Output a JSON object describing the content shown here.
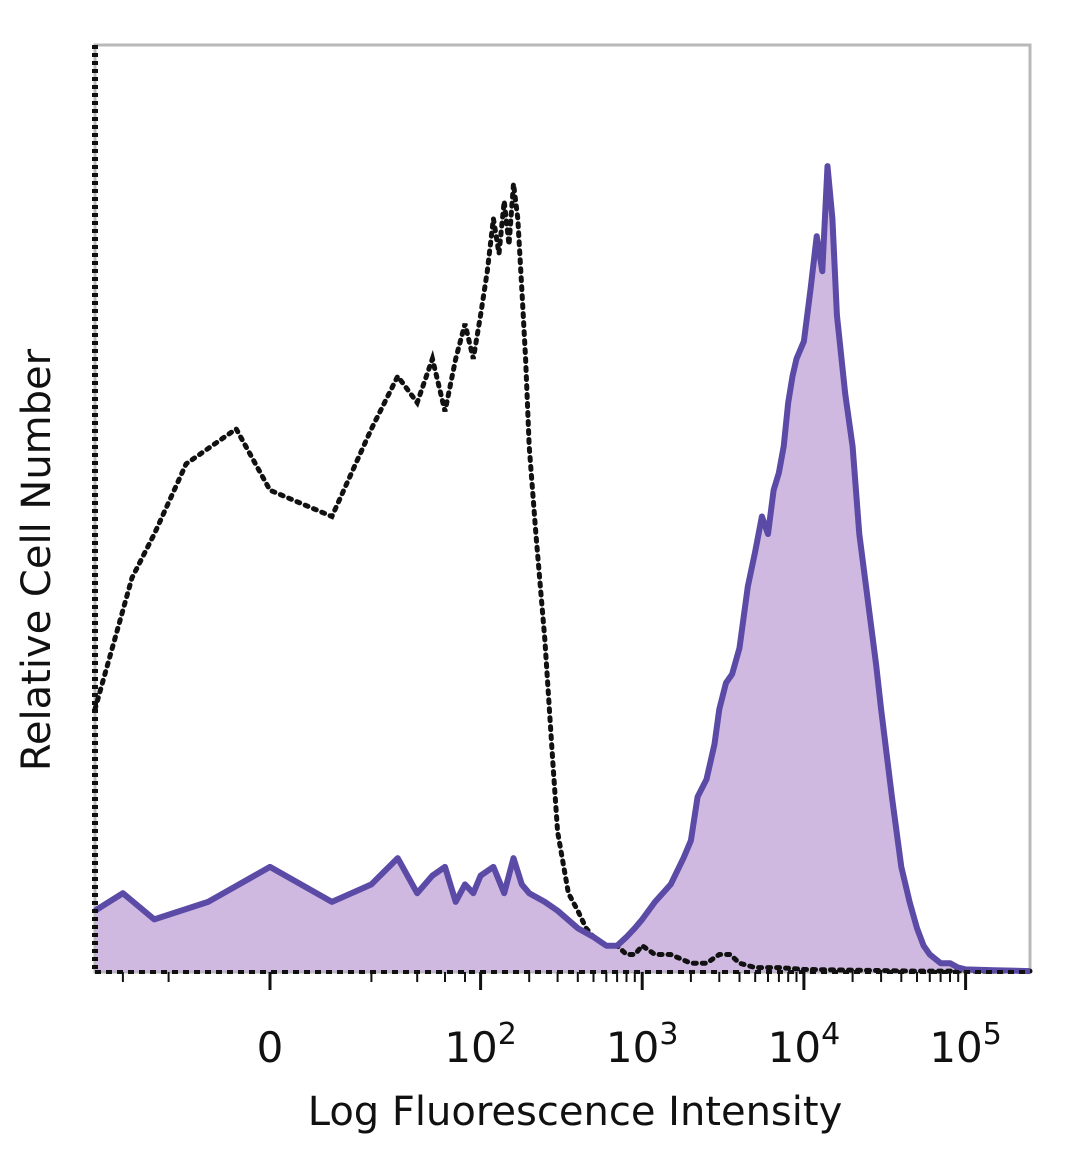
{
  "chart_data": {
    "type": "area",
    "xlabel": "Log Fluorescence Intensity",
    "ylabel": "Relative Cell Number",
    "x_scale": "biexponential",
    "x_ticks": [
      {
        "value": 0,
        "label": "0"
      },
      {
        "value": 100,
        "base": "10",
        "exp": "2"
      },
      {
        "value": 1000,
        "base": "10",
        "exp": "3"
      },
      {
        "value": 10000,
        "base": "10",
        "exp": "4"
      },
      {
        "value": 100000,
        "base": "10",
        "exp": "5"
      }
    ],
    "xlim": [
      -60,
      250000
    ],
    "ylim": [
      0,
      100
    ],
    "grid": false,
    "legend": "none",
    "colors": {
      "stained": "#5b4aa6",
      "stained_fill": "#c7addb",
      "control": "#111111"
    },
    "series": [
      {
        "style": "filled-solid",
        "x": [
          -60,
          -40,
          -25,
          -10,
          0,
          10,
          20,
          30,
          40,
          50,
          60,
          70,
          80,
          90,
          100,
          120,
          140,
          160,
          180,
          200,
          250,
          300,
          400,
          500,
          600,
          700,
          800,
          900,
          1000,
          1200,
          1500,
          1800,
          2000,
          2200,
          2500,
          2800,
          3000,
          3300,
          3600,
          4000,
          4500,
          5000,
          5500,
          6000,
          6500,
          7000,
          7500,
          8000,
          8500,
          9000,
          10000,
          11000,
          12000,
          13000,
          14000,
          15000,
          16000,
          18000,
          20000,
          22000,
          25000,
          28000,
          30000,
          35000,
          40000,
          45000,
          50000,
          55000,
          60000,
          70000,
          80000,
          90000,
          100000,
          150000,
          250000
        ],
        "y": [
          7,
          9,
          6,
          8,
          12,
          8,
          10,
          13,
          9,
          11,
          12,
          8,
          10,
          9,
          11,
          12,
          9,
          13,
          10,
          9,
          8,
          7,
          5,
          4,
          3,
          3,
          4,
          5,
          6,
          8,
          10,
          13,
          15,
          20,
          22,
          26,
          30,
          33,
          34,
          37,
          44,
          48,
          52,
          50,
          55,
          57,
          60,
          65,
          68,
          70,
          72,
          78,
          84,
          80,
          92,
          86,
          75,
          66,
          60,
          50,
          42,
          35,
          30,
          20,
          12,
          8,
          5,
          3,
          2,
          1,
          1,
          0.5,
          0.3,
          0.2,
          0.1
        ]
      },
      {
        "style": "dotted",
        "x": [
          -60,
          -45,
          -35,
          -25,
          -15,
          -5,
          0,
          10,
          20,
          30,
          40,
          50,
          60,
          70,
          80,
          90,
          100,
          110,
          120,
          130,
          140,
          150,
          160,
          170,
          180,
          190,
          200,
          220,
          250,
          280,
          300,
          350,
          400,
          450,
          500,
          600,
          700,
          800,
          900,
          1000,
          1200,
          1500,
          2000,
          2500,
          3000,
          3500,
          4000,
          5000,
          7000,
          10000,
          20000,
          50000,
          100000,
          250000
        ],
        "y": [
          30,
          38,
          45,
          50,
          58,
          62,
          55,
          52,
          62,
          68,
          65,
          70,
          64,
          70,
          74,
          70,
          75,
          80,
          86,
          82,
          88,
          83,
          90,
          86,
          78,
          70,
          60,
          50,
          38,
          24,
          16,
          9,
          7,
          5,
          4,
          3,
          3,
          2,
          2,
          3,
          2,
          2,
          1,
          1,
          2,
          2,
          1,
          0.5,
          0.5,
          0.3,
          0.2,
          0.1,
          0.1,
          0.1
        ]
      }
    ]
  }
}
